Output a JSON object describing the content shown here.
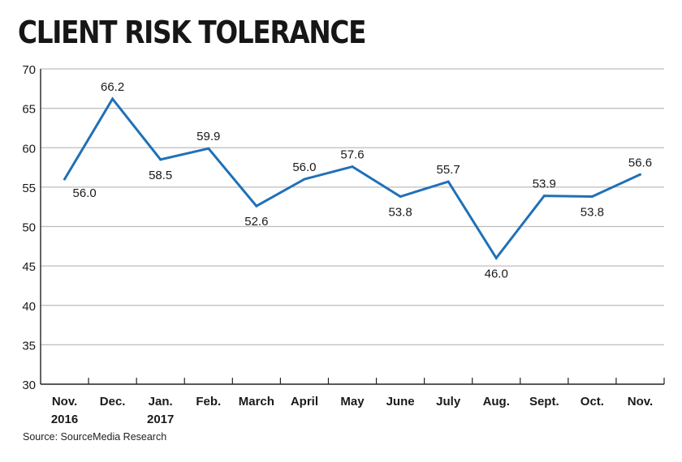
{
  "title": "CLIENT RISK TOLERANCE",
  "source": "Source: SourceMedia Research",
  "colors": {
    "line": "#1f70b8",
    "axis": "#222222",
    "grid": "#bdbdbd"
  },
  "chart_data": {
    "type": "line",
    "title": "CLIENT RISK TOLERANCE",
    "xlabel": "",
    "ylabel": "",
    "ylim": [
      30,
      70
    ],
    "yticks": [
      30,
      35,
      40,
      45,
      50,
      55,
      60,
      65,
      70
    ],
    "grid": "horizontal",
    "categories": [
      [
        "Nov.",
        "2016"
      ],
      [
        "Dec."
      ],
      [
        "Jan.",
        "2017"
      ],
      [
        "Feb."
      ],
      [
        "March"
      ],
      [
        "April"
      ],
      [
        "May"
      ],
      [
        "June"
      ],
      [
        "July"
      ],
      [
        "Aug."
      ],
      [
        "Sept."
      ],
      [
        "Oct."
      ],
      [
        "Nov."
      ]
    ],
    "series": [
      {
        "values": [
          56.0,
          66.2,
          58.5,
          59.9,
          52.6,
          56.0,
          57.6,
          53.8,
          55.7,
          46.0,
          53.9,
          53.8,
          56.6
        ],
        "data_labels": [
          "56.0",
          "66.2",
          "58.5",
          "59.9",
          "52.6",
          "56.0",
          "57.6",
          "53.8",
          "55.7",
          "46.0",
          "53.9",
          "53.8",
          "56.6"
        ],
        "label_positions": [
          "right",
          "above",
          "below",
          "above",
          "below",
          "above",
          "above",
          "below",
          "above",
          "below",
          "above",
          "below",
          "above"
        ]
      }
    ]
  }
}
